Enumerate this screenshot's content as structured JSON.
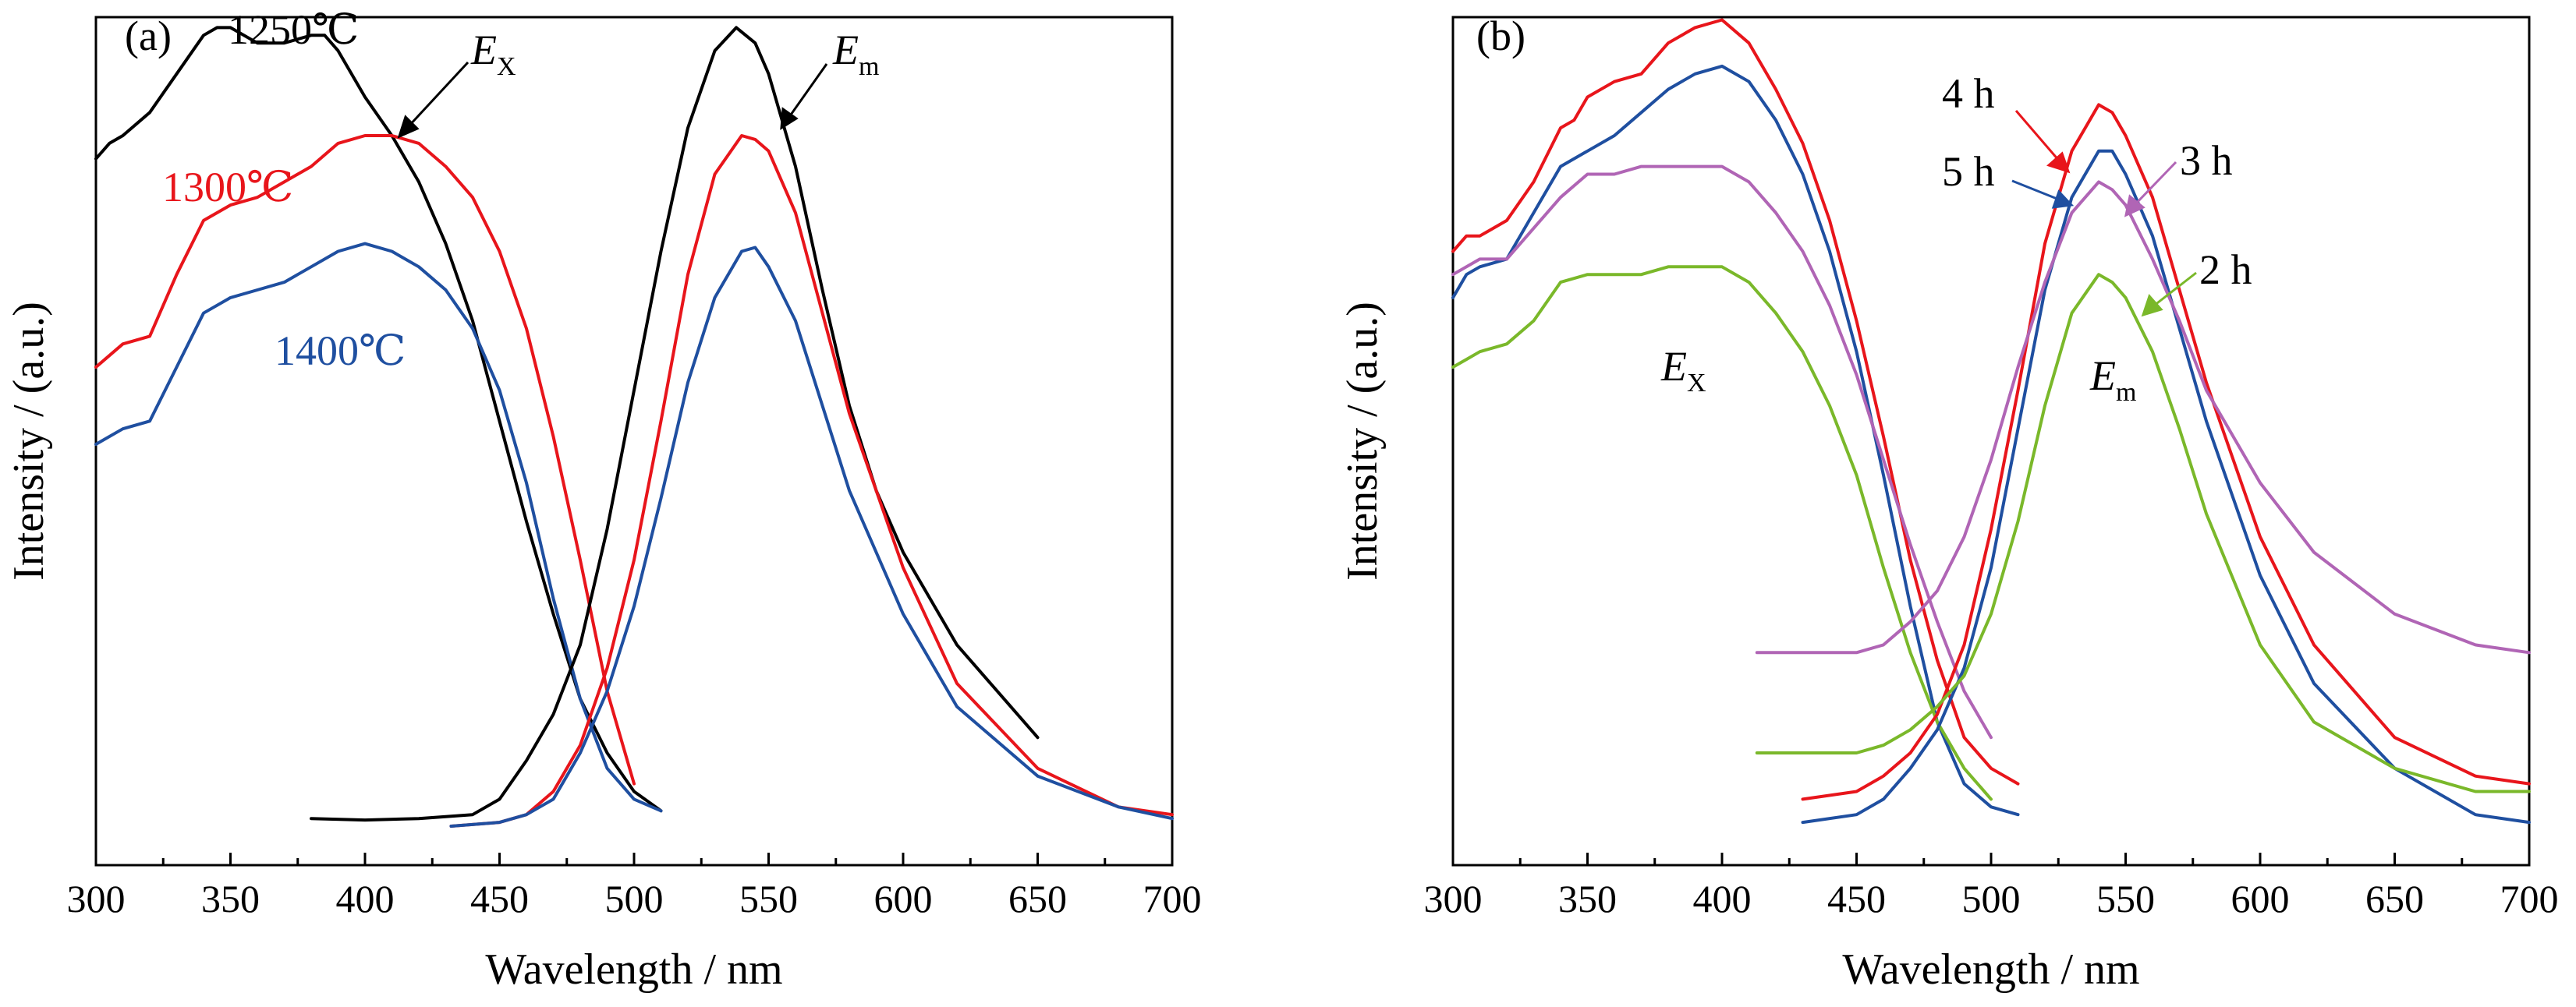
{
  "colors": {
    "black": "#000000",
    "red": "#e8151b",
    "blue": "#1f4fa0",
    "purple": "#b065b5",
    "green": "#7ab82a"
  },
  "chart_data": [
    {
      "type": "line",
      "panel_label": "(a)",
      "xlabel": "Wavelength / nm",
      "ylabel": "Intensity / (a.u.)",
      "xlim": [
        300,
        700
      ],
      "ylim": [
        0,
        100
      ],
      "xticks": [
        300,
        350,
        400,
        450,
        500,
        550,
        600,
        650,
        700
      ],
      "yticks_shown": false,
      "grid": false,
      "annotations": {
        "t1250": "1250℃",
        "t1300": "1300℃",
        "t1400": "1400℃",
        "ex_main": "E",
        "ex_sub": "X",
        "em_main": "E",
        "em_sub": "m"
      },
      "series": [
        {
          "group": "excitation",
          "color": "#000000",
          "x": [
            300,
            305,
            310,
            320,
            330,
            340,
            345,
            350,
            360,
            370,
            380,
            385,
            390,
            400,
            410,
            420,
            430,
            440,
            450,
            460,
            470,
            480,
            490,
            500,
            510
          ],
          "y": [
            87,
            89,
            90,
            93,
            98,
            103,
            104,
            104,
            102,
            102,
            103,
            103,
            101,
            95,
            90,
            84,
            76,
            66,
            53,
            40,
            28,
            17,
            10,
            5,
            2.5
          ]
        },
        {
          "group": "excitation",
          "color": "#e8151b",
          "x": [
            300,
            310,
            320,
            330,
            340,
            350,
            360,
            370,
            380,
            390,
            400,
            410,
            420,
            430,
            440,
            450,
            460,
            470,
            480,
            490,
            500
          ],
          "y": [
            60,
            63,
            64,
            72,
            79,
            81,
            82,
            84,
            86,
            89,
            90,
            90,
            89,
            86,
            82,
            75,
            65,
            51,
            35,
            18,
            6
          ]
        },
        {
          "group": "excitation",
          "color": "#1f4fa0",
          "x": [
            300,
            310,
            320,
            330,
            340,
            350,
            360,
            370,
            380,
            390,
            400,
            410,
            420,
            430,
            440,
            450,
            460,
            470,
            480,
            490,
            500,
            510
          ],
          "y": [
            50,
            52,
            53,
            60,
            67,
            69,
            70,
            71,
            73,
            75,
            76,
            75,
            73,
            70,
            65,
            57,
            45,
            30,
            17,
            8,
            4,
            2.5
          ]
        },
        {
          "group": "emission",
          "color": "#000000",
          "x": [
            380,
            400,
            420,
            440,
            450,
            460,
            470,
            480,
            490,
            500,
            510,
            520,
            530,
            538,
            545,
            550,
            560,
            570,
            580,
            590,
            600,
            620,
            650
          ],
          "y": [
            1.5,
            1.3,
            1.5,
            2,
            4,
            9,
            15,
            24,
            39,
            57,
            75,
            91,
            101,
            104,
            102,
            98,
            86,
            70,
            55,
            44,
            36,
            24,
            12
          ]
        },
        {
          "group": "emission",
          "color": "#e8151b",
          "x": [
            432,
            450,
            460,
            470,
            480,
            490,
            500,
            510,
            520,
            530,
            540,
            545,
            550,
            560,
            570,
            580,
            600,
            620,
            650,
            680,
            700
          ],
          "y": [
            0.5,
            1,
            2,
            5,
            11,
            21,
            35,
            53,
            72,
            85,
            90,
            89.5,
            88,
            80,
            67,
            54,
            34,
            19,
            8,
            3,
            2
          ]
        },
        {
          "group": "emission",
          "color": "#1f4fa0",
          "x": [
            432,
            450,
            460,
            470,
            480,
            490,
            500,
            510,
            520,
            530,
            540,
            545,
            550,
            560,
            570,
            580,
            600,
            620,
            650,
            680,
            700
          ],
          "y": [
            0.5,
            1,
            2,
            4,
            10,
            18,
            29,
            43,
            58,
            69,
            75,
            75.5,
            73,
            66,
            55,
            44,
            28,
            16,
            7,
            3,
            1.5
          ]
        }
      ]
    },
    {
      "type": "line",
      "panel_label": "(b)",
      "xlabel": "Wavelength / nm",
      "ylabel": "Intensity / (a.u.)",
      "xlim": [
        300,
        700
      ],
      "ylim": [
        0,
        100
      ],
      "xticks": [
        300,
        350,
        400,
        450,
        500,
        550,
        600,
        650,
        700
      ],
      "yticks_shown": false,
      "grid": false,
      "annotations": {
        "h4": "4 h",
        "h5": "5 h",
        "h3": "3 h",
        "h2": "2 h",
        "ex_main": "E",
        "ex_sub": "X",
        "em_main": "E",
        "em_sub": "m"
      },
      "series": [
        {
          "group": "excitation",
          "color": "#e8151b",
          "x": [
            300,
            305,
            310,
            320,
            330,
            340,
            345,
            350,
            360,
            370,
            380,
            390,
            400,
            410,
            420,
            430,
            440,
            450,
            460,
            470,
            480,
            490,
            500,
            510
          ],
          "y": [
            75,
            77,
            77,
            79,
            84,
            91,
            92,
            95,
            97,
            98,
            102,
            104,
            105,
            102,
            96,
            89,
            79,
            66,
            51,
            35,
            22,
            12,
            8,
            6
          ]
        },
        {
          "group": "excitation",
          "color": "#1f4fa0",
          "x": [
            300,
            305,
            310,
            320,
            330,
            340,
            350,
            360,
            370,
            380,
            390,
            400,
            410,
            420,
            430,
            440,
            450,
            460,
            470,
            480,
            490,
            500,
            510
          ],
          "y": [
            69,
            72,
            73,
            74,
            80,
            86,
            88,
            90,
            93,
            96,
            98,
            99,
            97,
            92,
            85,
            75,
            62,
            46,
            29,
            14,
            6,
            3,
            2
          ]
        },
        {
          "group": "excitation",
          "color": "#b065b5",
          "x": [
            300,
            310,
            320,
            330,
            340,
            350,
            360,
            370,
            380,
            390,
            400,
            410,
            420,
            430,
            440,
            450,
            460,
            470,
            480,
            490,
            500
          ],
          "y": [
            72,
            74,
            74,
            78,
            82,
            85,
            85,
            86,
            86,
            86,
            86,
            84,
            80,
            75,
            68,
            59,
            48,
            37,
            27,
            18,
            12
          ]
        },
        {
          "group": "excitation",
          "color": "#7ab82a",
          "x": [
            300,
            305,
            310,
            320,
            330,
            340,
            350,
            360,
            370,
            380,
            390,
            400,
            410,
            420,
            430,
            440,
            450,
            460,
            470,
            480,
            490,
            500
          ],
          "y": [
            60,
            61,
            62,
            63,
            66,
            71,
            72,
            72,
            72,
            73,
            73,
            73,
            71,
            67,
            62,
            55,
            46,
            34,
            23,
            14,
            8,
            4
          ]
        },
        {
          "group": "emission",
          "color": "#e8151b",
          "x": [
            430,
            450,
            460,
            470,
            480,
            490,
            500,
            510,
            520,
            530,
            540,
            545,
            550,
            560,
            570,
            580,
            600,
            620,
            650,
            680,
            700
          ],
          "y": [
            4,
            5,
            7,
            10,
            15,
            24,
            39,
            57,
            76,
            88,
            94,
            93,
            90,
            82,
            70,
            58,
            38,
            24,
            12,
            7,
            6
          ]
        },
        {
          "group": "emission",
          "color": "#1f4fa0",
          "x": [
            430,
            450,
            460,
            470,
            480,
            490,
            500,
            510,
            520,
            530,
            540,
            545,
            550,
            560,
            570,
            580,
            600,
            620,
            650,
            680,
            700
          ],
          "y": [
            1,
            2,
            4,
            8,
            13,
            21,
            34,
            52,
            70,
            82,
            88,
            88,
            85,
            77,
            65,
            53,
            33,
            19,
            8,
            2,
            1
          ]
        },
        {
          "group": "emission",
          "color": "#b065b5",
          "x": [
            413,
            430,
            450,
            460,
            470,
            480,
            490,
            500,
            510,
            520,
            530,
            540,
            545,
            550,
            560,
            570,
            580,
            600,
            620,
            650,
            680,
            700
          ],
          "y": [
            23,
            23,
            23,
            24,
            27,
            31,
            38,
            48,
            60,
            71,
            80,
            84,
            83,
            81,
            74,
            66,
            57,
            45,
            36,
            28,
            24,
            23
          ]
        },
        {
          "group": "emission",
          "color": "#7ab82a",
          "x": [
            413,
            430,
            450,
            460,
            470,
            480,
            490,
            500,
            510,
            520,
            530,
            540,
            545,
            550,
            560,
            570,
            580,
            600,
            620,
            650,
            680,
            700
          ],
          "y": [
            10,
            10,
            10,
            11,
            13,
            16,
            20,
            28,
            40,
            55,
            67,
            72,
            71,
            69,
            62,
            52,
            41,
            24,
            14,
            8,
            5,
            5
          ]
        }
      ]
    }
  ]
}
